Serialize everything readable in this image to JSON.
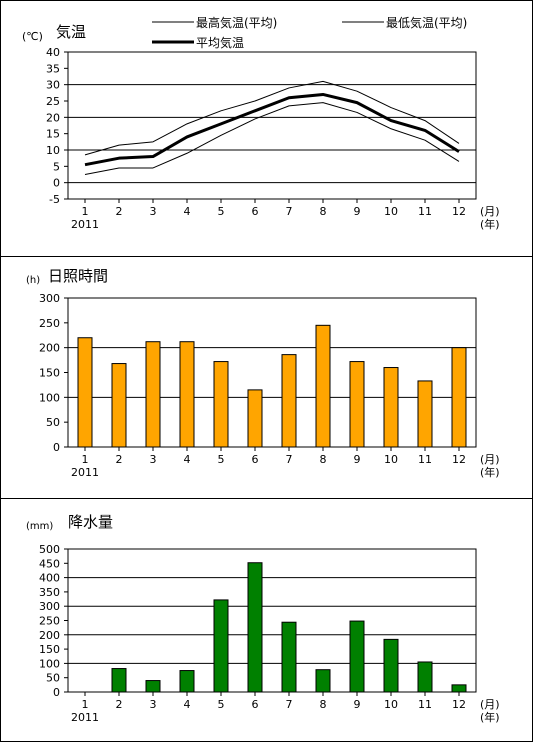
{
  "year_label": "2011",
  "x_unit_month": "(月)",
  "x_unit_year": "(年)",
  "chart_data": [
    {
      "type": "line",
      "title": "気温",
      "unit": "(℃)",
      "categories": [
        "1",
        "2",
        "3",
        "4",
        "5",
        "6",
        "7",
        "8",
        "9",
        "10",
        "11",
        "12"
      ],
      "ylim": [
        -5,
        40
      ],
      "yticks": [
        -5,
        0,
        5,
        10,
        15,
        20,
        25,
        30,
        35,
        40
      ],
      "grid": "horizontal at 10, 20, 30",
      "legend": [
        "最高気温(平均)",
        "最低気温(平均)",
        "平均気温"
      ],
      "series": [
        {
          "name": "最高気温(平均)",
          "values": [
            8.5,
            11.5,
            12.5,
            18,
            22,
            25,
            29,
            31,
            28,
            23,
            19,
            12
          ]
        },
        {
          "name": "平均気温",
          "values": [
            5.5,
            7.5,
            8,
            14,
            18,
            22,
            26,
            27,
            24.5,
            19,
            16,
            9.5
          ]
        },
        {
          "name": "最低気温(平均)",
          "values": [
            2.5,
            4.5,
            4.5,
            9,
            14.5,
            19.5,
            23.5,
            24.5,
            21.5,
            16.5,
            13,
            6.5
          ]
        }
      ]
    },
    {
      "type": "bar",
      "title": "日照時間",
      "unit": "(h)",
      "categories": [
        "1",
        "2",
        "3",
        "4",
        "5",
        "6",
        "7",
        "8",
        "9",
        "10",
        "11",
        "12"
      ],
      "values": [
        220,
        168,
        212,
        212,
        172,
        115,
        186,
        245,
        172,
        160,
        133,
        200
      ],
      "ylim": [
        0,
        300
      ],
      "yticks": [
        0,
        50,
        100,
        150,
        200,
        250,
        300
      ],
      "grid": "horizontal at 100, 200",
      "color": "#ffa500"
    },
    {
      "type": "bar",
      "title": "降水量",
      "unit": "(mm)",
      "categories": [
        "1",
        "2",
        "3",
        "4",
        "5",
        "6",
        "7",
        "8",
        "9",
        "10",
        "11",
        "12"
      ],
      "values": [
        0,
        82,
        40,
        75,
        322,
        452,
        244,
        78,
        248,
        184,
        105,
        25
      ],
      "ylim": [
        0,
        500
      ],
      "yticks": [
        0,
        50,
        100,
        150,
        200,
        250,
        300,
        350,
        400,
        450,
        500
      ],
      "grid": "horizontal at 100, 200, 300, 400",
      "color": "#008000"
    }
  ]
}
